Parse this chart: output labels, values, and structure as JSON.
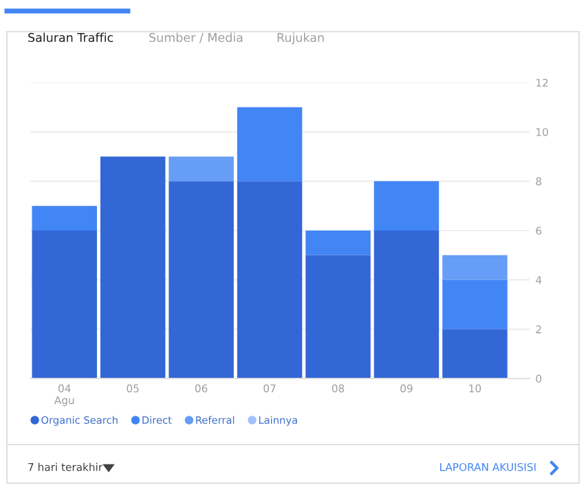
{
  "chart_data": {
    "type": "bar",
    "title": "Saluran Traffic",
    "categories": [
      "04\nAgu",
      "05",
      "06",
      "07",
      "08",
      "09",
      "10"
    ],
    "series": [
      {
        "name": "Organic Search",
        "color": "#3367d6",
        "values": [
          6,
          9,
          8,
          8,
          5,
          6,
          2
        ]
      },
      {
        "name": "Direct",
        "color": "#4285f4",
        "values": [
          1,
          0,
          0,
          3,
          1,
          2,
          2
        ]
      },
      {
        "name": "Referral",
        "color": "#669df6",
        "values": [
          0,
          0,
          1,
          0,
          0,
          0,
          1
        ]
      },
      {
        "name": "Lainnya",
        "color": "#a1c2fa",
        "values": [
          0,
          0,
          0,
          0,
          0,
          0,
          0
        ]
      }
    ],
    "stacked": true,
    "ylim": [
      0,
      12
    ],
    "yticks": [
      0,
      2,
      4,
      6,
      8,
      10,
      12
    ],
    "grid": "y",
    "legend": "bottom left",
    "annotations": [
      "Sumber / Media",
      "Rujukan",
      "7 hari terakhir",
      "LAPORAN AKUISISI"
    ]
  }
}
